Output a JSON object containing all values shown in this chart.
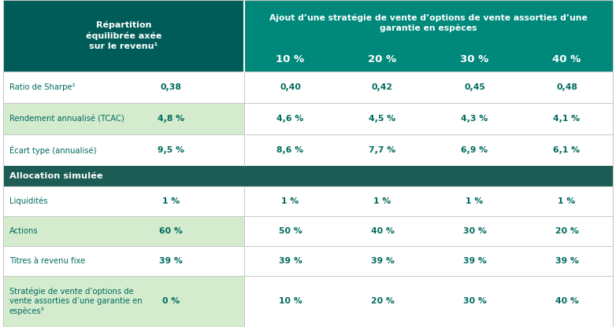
{
  "title_header_line1": "Ajout d’une stratégie de vente d’options de vente assorties d’une",
  "title_header_line2": "garantie en espèces",
  "col0_header": "Répartition\néquilibrée axée\nsur le revenu¹",
  "pct_headers": [
    "10 %",
    "20 %",
    "30 %",
    "40 %"
  ],
  "section1_header": "Allocation simulée",
  "rows": [
    {
      "label": "Ratio de Sharpe²",
      "values": [
        "0,38",
        "0,40",
        "0,42",
        "0,45",
        "0,48"
      ],
      "shaded": false
    },
    {
      "label": "Rendement annualisé (TCAC)",
      "values": [
        "4,8 %",
        "4,6 %",
        "4,5 %",
        "4,3 %",
        "4,1 %"
      ],
      "shaded": true
    },
    {
      "label": "Écart type (annualisé)",
      "values": [
        "9,5 %",
        "8,6 %",
        "7,7 %",
        "6,9 %",
        "6,1 %"
      ],
      "shaded": false
    },
    {
      "label": "Liquidités",
      "values": [
        "1 %",
        "1 %",
        "1 %",
        "1 %",
        "1 %"
      ],
      "shaded": false
    },
    {
      "label": "Actions",
      "values": [
        "60 %",
        "50 %",
        "40 %",
        "30 %",
        "20 %"
      ],
      "shaded": true
    },
    {
      "label": "Titres à revenu fixe",
      "values": [
        "39 %",
        "39 %",
        "39 %",
        "39 %",
        "39 %"
      ],
      "shaded": false
    },
    {
      "label": "Stratégie de vente d’options de\nvente assorties d’une garantie en\nespèces³",
      "values": [
        "0 %",
        "10 %",
        "20 %",
        "30 %",
        "40 %"
      ],
      "shaded": true
    }
  ],
  "color_dark_teal": "#005C58",
  "color_mid_teal": "#00897B",
  "color_light_green": "#D4EBCE",
  "color_white": "#FFFFFF",
  "color_text_teal": "#006B5E",
  "color_section_bg": "#1C5C54",
  "color_divider": "#c8c8c8"
}
